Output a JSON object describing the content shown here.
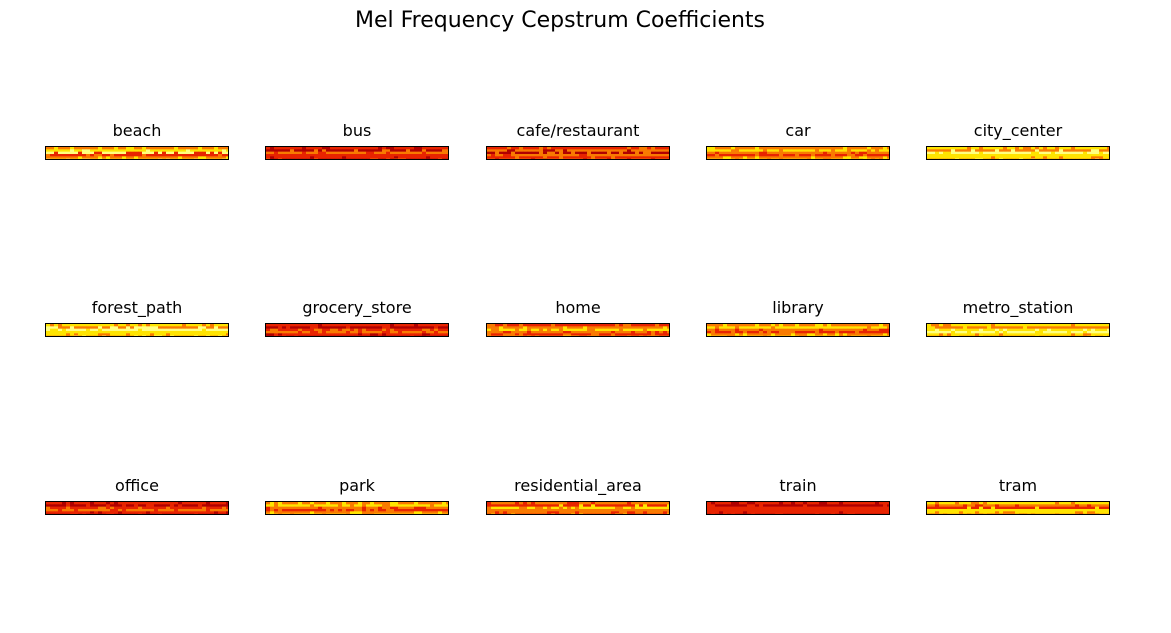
{
  "chart_data": {
    "type": "heatmap",
    "title": "Mel Frequency Cepstrum Coefficients",
    "colormap": "hot",
    "axes_visible": false,
    "panels": [
      {
        "label": "beach",
        "row": 0,
        "col": 0
      },
      {
        "label": "bus",
        "row": 0,
        "col": 1
      },
      {
        "label": "cafe/restaurant",
        "row": 0,
        "col": 2
      },
      {
        "label": "car",
        "row": 0,
        "col": 3
      },
      {
        "label": "city_center",
        "row": 0,
        "col": 4
      },
      {
        "label": "forest_path",
        "row": 1,
        "col": 0
      },
      {
        "label": "grocery_store",
        "row": 1,
        "col": 1
      },
      {
        "label": "home",
        "row": 1,
        "col": 2
      },
      {
        "label": "library",
        "row": 1,
        "col": 3
      },
      {
        "label": "metro_station",
        "row": 1,
        "col": 4
      },
      {
        "label": "office",
        "row": 2,
        "col": 0
      },
      {
        "label": "park",
        "row": 2,
        "col": 1
      },
      {
        "label": "residential_area",
        "row": 2,
        "col": 2
      },
      {
        "label": "train",
        "row": 2,
        "col": 3
      },
      {
        "label": "tram",
        "row": 2,
        "col": 4
      }
    ]
  },
  "colors": {
    "hot_dark": "#b00000",
    "hot_red": "#e82400",
    "hot_orange": "#f97a00",
    "hot_yellow": "#ffe400",
    "hot_pale": "#ffff80"
  }
}
